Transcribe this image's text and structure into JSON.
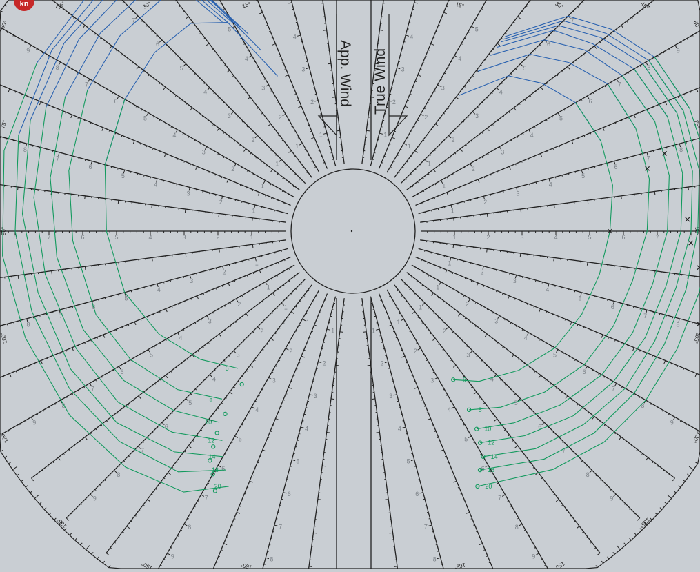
{
  "badge": {
    "text": "kn",
    "color": "#c62828"
  },
  "panels": {
    "apparent": {
      "title": "App. Wind"
    },
    "true": {
      "title": "True Wind"
    }
  },
  "colors": {
    "frame": "#222222",
    "background": "#c9ced3",
    "upwind_curves": "#2a62b0",
    "downwind_curves": "#139a5e",
    "speed_labels": "#7c8288"
  },
  "chart_data": {
    "type": "polar",
    "title": "",
    "angle_unit": "deg",
    "angle_range": [
      0,
      180
    ],
    "angle_labels": [
      {
        "angle": 15,
        "text": "15°"
      },
      {
        "angle": 30,
        "text": "30°"
      },
      {
        "angle": 45,
        "text": "45°"
      },
      {
        "angle": 60,
        "text": "60°"
      },
      {
        "angle": 75,
        "text": "75°"
      },
      {
        "angle": 90,
        "text": "90°"
      },
      {
        "angle": 105,
        "text": "105°"
      },
      {
        "angle": 120,
        "text": "120°"
      },
      {
        "angle": 135,
        "text": "135°"
      },
      {
        "angle": 150,
        "text": "150°"
      },
      {
        "angle": 165,
        "text": "165°"
      }
    ],
    "radial_unit": "kn",
    "radial_range": [
      0,
      10
    ],
    "radial_tick_labels": [
      "1",
      "2",
      "3",
      "4",
      "5",
      "6",
      "7",
      "8",
      "9"
    ],
    "wind_speeds": [
      "6",
      "8",
      "10",
      "12",
      "14",
      "16",
      "20"
    ],
    "true_wind_polars": [
      {
        "tws": "6",
        "points": [
          [
            38,
            3.1
          ],
          [
            45,
            4.5
          ],
          [
            52,
            5.1
          ],
          [
            60,
            5.6
          ],
          [
            70,
            5.8
          ],
          [
            80,
            5.8
          ],
          [
            90,
            5.6
          ],
          [
            100,
            5.4
          ],
          [
            110,
            5.2
          ],
          [
            120,
            4.9
          ],
          [
            130,
            4.4
          ],
          [
            140,
            3.8
          ],
          [
            146,
            3.3
          ]
        ]
      },
      {
        "tws": "8",
        "points": [
          [
            38,
            4.0
          ],
          [
            45,
            5.4
          ],
          [
            52,
            6.1
          ],
          [
            60,
            6.7
          ],
          [
            70,
            6.9
          ],
          [
            80,
            6.9
          ],
          [
            90,
            6.7
          ],
          [
            100,
            6.4
          ],
          [
            110,
            6.2
          ],
          [
            120,
            5.9
          ],
          [
            130,
            5.4
          ],
          [
            140,
            4.8
          ],
          [
            147,
            4.3
          ]
        ]
      },
      {
        "tws": "10",
        "points": [
          [
            38,
            4.6
          ],
          [
            45,
            6.0
          ],
          [
            52,
            6.7
          ],
          [
            60,
            7.2
          ],
          [
            70,
            7.5
          ],
          [
            80,
            7.5
          ],
          [
            90,
            7.3
          ],
          [
            100,
            7.0
          ],
          [
            110,
            6.8
          ],
          [
            120,
            6.5
          ],
          [
            130,
            6.0
          ],
          [
            140,
            5.4
          ],
          [
            148,
            4.9
          ]
        ]
      },
      {
        "tws": "12",
        "points": [
          [
            38,
            4.9
          ],
          [
            45,
            6.4
          ],
          [
            52,
            7.0
          ],
          [
            60,
            7.6
          ],
          [
            70,
            7.9
          ],
          [
            80,
            7.9
          ],
          [
            90,
            7.7
          ],
          [
            100,
            7.4
          ],
          [
            110,
            7.2
          ],
          [
            120,
            6.9
          ],
          [
            130,
            6.5
          ],
          [
            140,
            5.9
          ],
          [
            149,
            5.3
          ]
        ]
      },
      {
        "tws": "14",
        "points": [
          [
            38,
            5.1
          ],
          [
            45,
            6.6
          ],
          [
            52,
            7.3
          ],
          [
            60,
            7.9
          ],
          [
            70,
            8.2
          ],
          [
            80,
            8.2
          ],
          [
            90,
            8.0
          ],
          [
            100,
            7.7
          ],
          [
            110,
            7.5
          ],
          [
            120,
            7.3
          ],
          [
            130,
            6.9
          ],
          [
            140,
            6.4
          ],
          [
            150,
            5.7
          ]
        ]
      },
      {
        "tws": "16",
        "points": [
          [
            38,
            5.2
          ],
          [
            45,
            6.8
          ],
          [
            52,
            7.5
          ],
          [
            60,
            8.1
          ],
          [
            70,
            8.4
          ],
          [
            80,
            8.4
          ],
          [
            90,
            8.2
          ],
          [
            100,
            8.0
          ],
          [
            110,
            7.8
          ],
          [
            120,
            7.6
          ],
          [
            130,
            7.3
          ],
          [
            140,
            6.8
          ],
          [
            152,
            6.0
          ]
        ]
      },
      {
        "tws": "20",
        "points": [
          [
            38,
            5.3
          ],
          [
            45,
            7.0
          ],
          [
            52,
            7.7
          ],
          [
            60,
            8.3
          ],
          [
            70,
            8.6
          ],
          [
            80,
            8.7
          ],
          [
            90,
            8.6
          ],
          [
            100,
            8.4
          ],
          [
            110,
            8.2
          ],
          [
            120,
            8.0
          ],
          [
            130,
            7.7
          ],
          [
            140,
            7.2
          ],
          [
            154,
            6.4
          ]
        ]
      }
    ],
    "apparent_wind_polars": [
      {
        "aws": "6",
        "points": [
          [
            26,
            3.1
          ],
          [
            31,
            5.2
          ],
          [
            38,
            5.8
          ],
          [
            48,
            5.9
          ],
          [
            60,
            5.8
          ],
          [
            75,
            5.6
          ],
          [
            90,
            5.3
          ],
          [
            105,
            5.0
          ],
          [
            118,
            4.5
          ],
          [
            130,
            3.9
          ],
          [
            140,
            3.3
          ]
        ]
      },
      {
        "aws": "8",
        "points": [
          [
            27,
            4.0
          ],
          [
            32,
            6.3
          ],
          [
            39,
            6.9
          ],
          [
            50,
            7.0
          ],
          [
            62,
            6.9
          ],
          [
            78,
            6.6
          ],
          [
            92,
            6.3
          ],
          [
            108,
            6.0
          ],
          [
            120,
            5.6
          ],
          [
            132,
            5.0
          ],
          [
            142,
            4.3
          ]
        ]
      },
      {
        "aws": "10",
        "points": [
          [
            28,
            4.6
          ],
          [
            33,
            6.9
          ],
          [
            41,
            7.4
          ],
          [
            52,
            7.5
          ],
          [
            65,
            7.4
          ],
          [
            80,
            7.1
          ],
          [
            95,
            6.8
          ],
          [
            110,
            6.5
          ],
          [
            123,
            6.1
          ],
          [
            135,
            5.5
          ],
          [
            145,
            4.9
          ]
        ]
      },
      {
        "aws": "12",
        "points": [
          [
            29,
            4.9
          ],
          [
            34,
            7.3
          ],
          [
            43,
            7.8
          ],
          [
            55,
            7.9
          ],
          [
            68,
            7.8
          ],
          [
            84,
            7.5
          ],
          [
            98,
            7.2
          ],
          [
            113,
            6.9
          ],
          [
            126,
            6.6
          ],
          [
            138,
            6.0
          ],
          [
            148,
            5.3
          ]
        ]
      },
      {
        "aws": "14",
        "points": [
          [
            30,
            5.1
          ],
          [
            35,
            7.6
          ],
          [
            45,
            8.1
          ],
          [
            57,
            8.2
          ],
          [
            71,
            8.1
          ],
          [
            87,
            7.8
          ],
          [
            101,
            7.5
          ],
          [
            116,
            7.3
          ],
          [
            129,
            7.0
          ],
          [
            141,
            6.4
          ],
          [
            150,
            5.7
          ]
        ]
      },
      {
        "aws": "16",
        "points": [
          [
            31,
            5.2
          ],
          [
            36,
            7.8
          ],
          [
            47,
            8.3
          ],
          [
            59,
            8.4
          ],
          [
            74,
            8.3
          ],
          [
            90,
            8.0
          ],
          [
            104,
            7.8
          ],
          [
            119,
            7.6
          ],
          [
            132,
            7.3
          ],
          [
            144,
            6.8
          ],
          [
            152,
            6.0
          ]
        ]
      },
      {
        "aws": "20",
        "points": [
          [
            32,
            5.3
          ],
          [
            37,
            8.0
          ],
          [
            49,
            8.5
          ],
          [
            62,
            8.6
          ],
          [
            77,
            8.6
          ],
          [
            94,
            8.4
          ],
          [
            108,
            8.2
          ],
          [
            123,
            8.0
          ],
          [
            136,
            7.7
          ],
          [
            147,
            7.2
          ],
          [
            154,
            6.4
          ]
        ]
      }
    ],
    "beat_targets": [
      {
        "tws": "6",
        "angle": 90,
        "speed": 5.6
      },
      {
        "tws": "8",
        "angle": 78,
        "speed": 6.9
      },
      {
        "tws": "10",
        "angle": 76,
        "speed": 7.5
      },
      {
        "tws": "12",
        "angle": 88,
        "speed": 7.9
      },
      {
        "tws": "14",
        "angle": 92,
        "speed": 8.0
      },
      {
        "tws": "16",
        "angle": 96,
        "speed": 8.3
      },
      {
        "tws": "20",
        "angle": 105,
        "speed": 8.6
      }
    ],
    "run_targets": [
      {
        "tws": "6",
        "angle": 146,
        "speed": 3.3
      },
      {
        "tws": "8",
        "angle": 147,
        "speed": 4.3
      },
      {
        "tws": "10",
        "angle": 148,
        "speed": 4.9
      },
      {
        "tws": "12",
        "angle": 149,
        "speed": 5.3
      },
      {
        "tws": "14",
        "angle": 150,
        "speed": 5.7
      },
      {
        "tws": "16",
        "angle": 152,
        "speed": 6.0
      },
      {
        "tws": "20",
        "angle": 154,
        "speed": 6.4
      }
    ]
  }
}
